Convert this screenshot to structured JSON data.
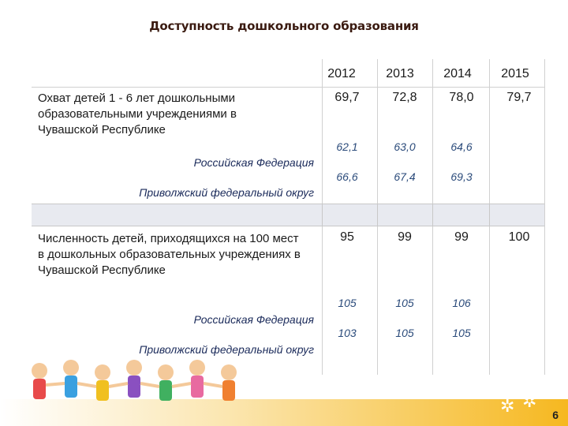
{
  "title": "Доступность дошкольного образования",
  "years": [
    "2012",
    "2013",
    "2014",
    "2015"
  ],
  "section1": {
    "label": "Охват детей 1 - 6 лет дошкольными образовательными учреждениями в Чувашской Республике",
    "main_values": [
      "69,7",
      "72,8",
      "78,0",
      "79,7"
    ],
    "rf_label": "Российская Федерация",
    "rf_values": [
      "62,1",
      "63,0",
      "64,6"
    ],
    "pfo_label": "Приволжский федеральный округ",
    "pfo_values": [
      "66,6",
      "67,4",
      "69,3"
    ]
  },
  "section2": {
    "label": "Численность детей, приходящихся на 100 мест в дошкольных образовательных учреждениях в Чувашской Республике",
    "main_values": [
      "95",
      "99",
      "99",
      "100"
    ],
    "rf_label": "Российская Федерация",
    "rf_values": [
      "105",
      "105",
      "106"
    ],
    "pfo_label": "Приволжский федеральный округ",
    "pfo_values": [
      "103",
      "105",
      "105"
    ]
  },
  "page_number": "6",
  "colors": {
    "accent": "#f6b820",
    "sub_text": "#2a4a7a"
  }
}
